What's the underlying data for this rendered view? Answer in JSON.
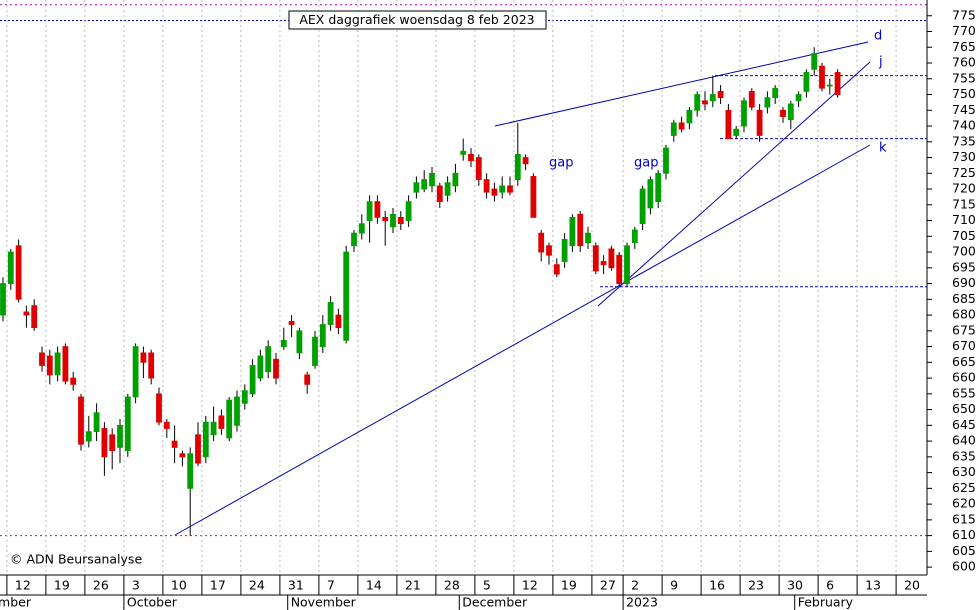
{
  "chart_data": {
    "type": "candlestick",
    "title": "AEX daggrafiek woensdag 8 feb 2023",
    "credit": "© ADN Beursanalyse",
    "annotations": [
      "gap",
      "gap",
      "d",
      "j",
      "k"
    ],
    "months": [
      "September",
      "October",
      "November",
      "December",
      "2023",
      "February"
    ],
    "ylim": [
      597.5,
      780
    ],
    "yticks": [
      600,
      605,
      610,
      615,
      620,
      625,
      630,
      635,
      640,
      645,
      650,
      655,
      660,
      665,
      670,
      675,
      680,
      685,
      690,
      695,
      700,
      705,
      710,
      715,
      720,
      725,
      730,
      735,
      740,
      745,
      750,
      755,
      760,
      765,
      770,
      775
    ],
    "levels": [
      778.5,
      773.5,
      756,
      736,
      689,
      610
    ],
    "up_color": "#00a000",
    "down_color": "#e00000",
    "grid": true,
    "categories": [
      null,
      "12",
      null,
      null,
      null,
      null,
      "19",
      null,
      null,
      null,
      null,
      "26",
      null,
      null,
      null,
      null,
      "3",
      null,
      null,
      null,
      null,
      "10",
      null,
      null,
      null,
      null,
      "17",
      null,
      null,
      null,
      null,
      "24",
      null,
      null,
      null,
      null,
      "31",
      null,
      null,
      null,
      null,
      "7",
      null,
      null,
      null,
      null,
      "14",
      null,
      null,
      null,
      null,
      "21",
      null,
      null,
      null,
      null,
      "28",
      null,
      null,
      null,
      null,
      "5",
      null,
      null,
      null,
      null,
      "12",
      null,
      null,
      null,
      null,
      "19",
      null,
      null,
      null,
      null,
      "27",
      null,
      null,
      null,
      "2",
      null,
      null,
      null,
      null,
      "9",
      null,
      null,
      null,
      null,
      "16",
      null,
      null,
      null,
      null,
      "23",
      null,
      null,
      null,
      null,
      "30",
      null,
      null,
      null,
      null,
      "6",
      null,
      null,
      null,
      null,
      "13",
      null,
      null,
      null,
      null,
      "20",
      null,
      null,
      null
    ],
    "ohlc": [
      [
        680,
        692,
        678,
        690
      ],
      [
        690,
        701,
        688,
        700
      ],
      [
        702,
        704,
        684,
        685
      ],
      [
        681,
        683,
        676,
        680
      ],
      [
        683,
        685,
        675,
        676
      ],
      [
        668,
        670,
        662,
        664
      ],
      [
        667,
        669,
        658,
        661
      ],
      [
        661,
        670,
        659,
        668
      ],
      [
        670,
        671,
        658,
        659
      ],
      [
        660,
        662,
        656,
        658
      ],
      [
        654,
        655,
        637,
        639
      ],
      [
        640,
        648,
        638,
        643
      ],
      [
        643,
        652,
        640,
        649
      ],
      [
        644,
        646,
        629,
        635
      ],
      [
        642,
        644,
        631,
        637
      ],
      [
        638,
        647,
        633,
        645
      ],
      [
        637,
        655,
        635,
        654
      ],
      [
        654,
        671,
        652,
        670
      ],
      [
        668,
        670,
        660,
        665
      ],
      [
        668,
        669,
        658,
        660
      ],
      [
        655,
        657,
        645,
        646
      ],
      [
        646,
        647,
        641,
        644
      ],
      [
        640,
        645,
        633,
        638
      ],
      [
        636,
        637,
        632,
        635
      ],
      [
        625,
        638,
        610,
        636
      ],
      [
        642,
        646,
        632,
        633
      ],
      [
        635,
        648,
        633,
        646
      ],
      [
        642,
        651,
        640,
        646
      ],
      [
        648,
        650,
        642,
        644
      ],
      [
        641,
        654,
        640,
        653
      ],
      [
        645,
        656,
        643,
        654
      ],
      [
        652,
        658,
        650,
        656
      ],
      [
        655,
        666,
        654,
        664
      ],
      [
        660,
        669,
        659,
        667
      ],
      [
        662,
        672,
        660,
        670
      ],
      [
        666,
        668,
        658,
        660
      ],
      [
        670,
        676,
        669,
        672
      ],
      [
        678,
        680,
        673,
        677
      ],
      [
        668,
        676,
        666,
        675
      ],
      [
        661,
        662,
        655,
        658
      ],
      [
        664,
        675,
        663,
        673
      ],
      [
        670,
        680,
        668,
        677
      ],
      [
        677,
        686,
        675,
        684
      ],
      [
        680,
        682,
        674,
        676
      ],
      [
        672,
        702,
        671,
        700
      ],
      [
        702,
        707,
        700,
        706
      ],
      [
        706,
        712,
        704,
        709
      ],
      [
        710,
        718,
        703,
        716
      ],
      [
        716,
        718,
        709,
        711
      ],
      [
        711,
        713,
        702,
        710
      ],
      [
        708,
        714,
        706,
        712
      ],
      [
        711,
        713,
        707,
        709
      ],
      [
        710,
        718,
        708,
        716
      ],
      [
        719,
        724,
        717,
        722
      ],
      [
        720,
        726,
        719,
        723
      ],
      [
        721,
        727,
        719,
        725
      ],
      [
        721,
        722,
        714,
        716
      ],
      [
        718,
        724,
        716,
        722
      ],
      [
        721,
        728,
        719,
        725
      ],
      [
        731,
        736,
        729,
        732
      ],
      [
        731,
        733,
        727,
        729
      ],
      [
        730,
        731,
        721,
        723
      ],
      [
        723,
        725,
        717,
        719
      ],
      [
        720,
        722,
        716,
        718
      ],
      [
        719,
        724,
        717,
        721
      ],
      [
        721,
        724,
        718,
        719
      ],
      [
        723,
        741,
        721,
        731
      ],
      [
        730,
        731,
        726,
        728
      ],
      [
        724,
        725,
        711,
        711
      ],
      [
        706,
        707,
        697,
        700
      ],
      [
        702,
        703,
        696,
        699
      ],
      [
        696,
        698,
        692,
        693
      ],
      [
        697,
        706,
        695,
        704
      ],
      [
        702,
        712,
        700,
        711
      ],
      [
        712,
        713,
        700,
        702
      ],
      [
        703,
        708,
        701,
        706
      ],
      [
        702,
        703,
        693,
        694
      ],
      [
        697,
        699,
        693,
        696
      ],
      [
        701,
        702,
        694,
        695
      ],
      [
        699,
        700,
        689,
        690
      ],
      [
        690,
        703,
        689,
        702
      ],
      [
        703,
        708,
        701,
        707
      ],
      [
        709,
        721,
        707,
        720
      ],
      [
        714,
        724,
        712,
        723
      ],
      [
        716,
        726,
        714,
        725
      ],
      [
        725,
        734,
        723,
        733
      ],
      [
        737,
        742,
        735,
        741
      ],
      [
        741,
        743,
        738,
        739
      ],
      [
        741,
        746,
        739,
        745
      ],
      [
        745,
        751,
        743,
        750
      ],
      [
        748,
        751,
        745,
        747
      ],
      [
        748,
        756,
        746,
        750
      ],
      [
        751,
        753,
        747,
        749
      ],
      [
        745,
        747,
        736,
        736
      ],
      [
        737,
        740,
        736,
        739
      ],
      [
        740,
        749,
        738,
        748
      ],
      [
        751,
        752,
        745,
        746
      ],
      [
        745,
        747,
        735,
        737
      ],
      [
        746,
        751,
        744,
        749
      ],
      [
        749,
        753,
        747,
        752
      ],
      [
        745,
        746,
        741,
        743
      ],
      [
        742,
        748,
        739,
        747
      ],
      [
        748,
        751,
        746,
        750
      ],
      [
        751,
        758,
        749,
        757
      ],
      [
        758,
        765,
        756,
        763
      ],
      [
        759,
        760,
        751,
        752
      ],
      [
        753,
        755,
        750,
        753
      ],
      [
        757,
        758,
        749,
        750
      ],
      null,
      null,
      null,
      null,
      null,
      null,
      null,
      null,
      null,
      null,
      null
    ]
  }
}
